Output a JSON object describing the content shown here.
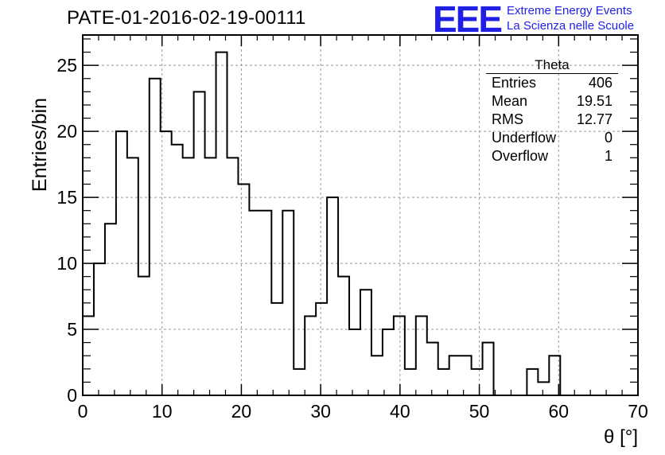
{
  "title": "PATE-01-2016-02-19-00111",
  "logo": {
    "mark": "EEE",
    "line1": "Extreme Energy Events",
    "line2": "La Scienza nelle Scuole",
    "color": "#1f1fe6"
  },
  "stats": {
    "title": "Theta",
    "rows": [
      {
        "label": "Entries",
        "value": "406"
      },
      {
        "label": "Mean",
        "value": "19.51"
      },
      {
        "label": "RMS",
        "value": "12.77"
      },
      {
        "label": "Underflow",
        "value": "0"
      },
      {
        "label": "Overflow",
        "value": "1"
      }
    ]
  },
  "chart_data": {
    "type": "bar",
    "style": "step-histogram",
    "title": "PATE-01-2016-02-19-00111",
    "xlabel": "θ [°]",
    "ylabel": "Entries/bin",
    "xlim": [
      0,
      70
    ],
    "ylim": [
      0,
      27.3
    ],
    "xticks": [
      0,
      10,
      20,
      30,
      40,
      50,
      60,
      70
    ],
    "yticks": [
      0,
      5,
      10,
      15,
      20,
      25
    ],
    "grid": true,
    "bin_width": 1.4,
    "values": [
      6,
      10,
      13,
      20,
      18,
      9,
      24,
      20,
      19,
      18,
      23,
      18,
      26,
      18,
      16,
      14,
      14,
      7,
      14,
      2,
      6,
      7,
      15,
      9,
      5,
      8,
      3,
      5,
      6,
      2,
      6,
      4,
      2,
      3,
      3,
      2,
      4,
      0,
      0,
      0,
      2,
      1,
      3,
      0,
      0,
      0,
      0,
      0,
      0,
      0
    ],
    "line_color": "#000000"
  }
}
